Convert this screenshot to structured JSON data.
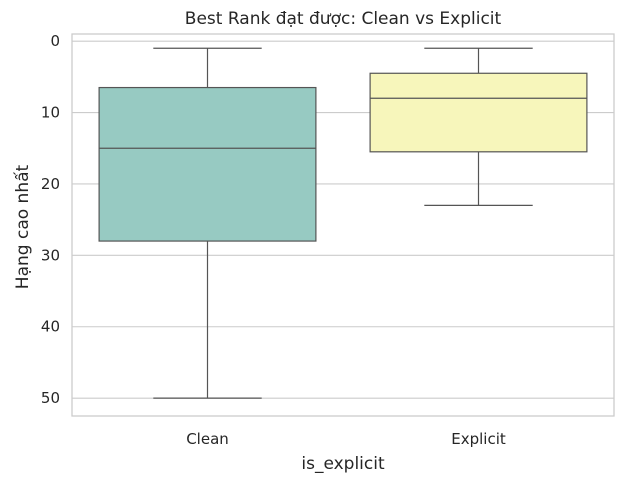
{
  "chart_data": {
    "type": "box",
    "title": "Best Rank đạt được: Clean vs Explicit",
    "xlabel": "is_explicit",
    "ylabel": "Hạng cao nhất",
    "categories": [
      "Clean",
      "Explicit"
    ],
    "y_axis_inverted": true,
    "ylim": [
      -1.0,
      52.5
    ],
    "yticks": [
      0,
      10,
      20,
      30,
      40,
      50
    ],
    "grid": "horizontal",
    "boxes": [
      {
        "category": "Clean",
        "whisker_low": 1,
        "q1": 6.5,
        "median": 15,
        "q3": 28,
        "whisker_high": 50,
        "color": "#97cac2"
      },
      {
        "category": "Explicit",
        "whisker_low": 1,
        "q1": 4.5,
        "median": 8,
        "q3": 15.5,
        "whisker_high": 23,
        "color": "#f7f6bb"
      }
    ]
  },
  "colors": {
    "grid": "#cccccc",
    "spine": "#cccccc",
    "box_edge": "#555555"
  }
}
